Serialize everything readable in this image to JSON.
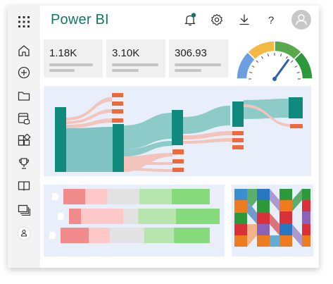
{
  "app": {
    "title": "Power BI"
  },
  "header": {
    "icons": [
      "bell-icon",
      "gear-icon",
      "download-icon",
      "help-icon",
      "avatar"
    ],
    "notification_color": "#117865",
    "help_label": "?"
  },
  "sidebar": {
    "items": [
      "home-icon",
      "create-icon",
      "browse-icon",
      "data-hub-icon",
      "apps-icon",
      "goals-icon",
      "learn-icon",
      "workspaces-icon",
      "account-icon"
    ]
  },
  "kpis": [
    {
      "value": "1.18K"
    },
    {
      "value": "3.10K"
    },
    {
      "value": "306.93"
    }
  ],
  "gauge": {
    "segments": [
      "#6d9fe0",
      "#f4b942",
      "#58a84c",
      "#2c9a3c"
    ],
    "needle_color": "#2b5fb0",
    "value_fraction": 0.7
  },
  "colors": {
    "accent": "#117865",
    "teal_dark": "#0f8a7c",
    "teal_light": "#7fc4c2",
    "salmon": "#f2a69a",
    "orange": "#ee6a3c",
    "panel_bg": "#e9effa"
  },
  "bars": [
    {
      "segments": [
        0.15,
        0.15,
        0.22,
        0.22,
        0.26
      ]
    },
    {
      "segments": [
        0.08,
        0.28,
        0.1,
        0.25,
        0.29
      ]
    },
    {
      "segments": [
        0.19,
        0.14,
        0.23,
        0.2,
        0.24
      ]
    }
  ]
}
